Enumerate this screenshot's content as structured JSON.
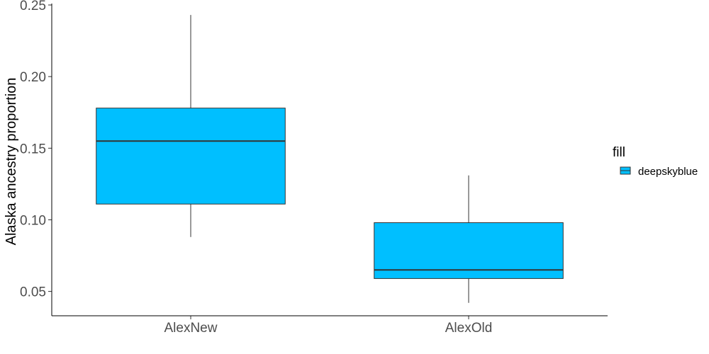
{
  "chart_data": {
    "type": "boxplot",
    "categories": [
      "AlexNew",
      "AlexOld"
    ],
    "boxes": [
      {
        "category": "AlexNew",
        "min": 0.088,
        "q1": 0.111,
        "median": 0.155,
        "q3": 0.178,
        "max": 0.243
      },
      {
        "category": "AlexOld",
        "min": 0.042,
        "q1": 0.059,
        "median": 0.065,
        "q3": 0.098,
        "max": 0.131
      }
    ],
    "ylabel": "Alaska ancestry proportion",
    "xlabel": "",
    "yticks": [
      0.05,
      0.1,
      0.15,
      0.2,
      0.25
    ],
    "ytick_labels": [
      "0.05",
      "0.10",
      "0.15",
      "0.20",
      "0.25"
    ],
    "ylim": [
      0.033,
      0.251
    ],
    "grid": false,
    "fill_color": "#00bfff",
    "legend": {
      "title": "fill",
      "entries": [
        "deepskyblue"
      ],
      "position": "right"
    }
  }
}
